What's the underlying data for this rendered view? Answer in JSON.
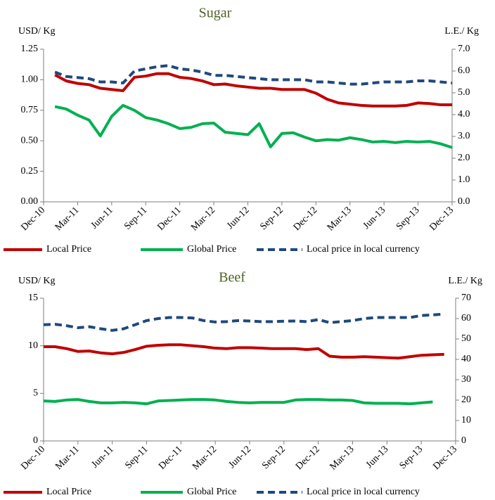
{
  "chart_data": [
    {
      "type": "line",
      "title": "Sugar",
      "y_label": "USD/ Kg",
      "y2_label": "L.E./ Kg",
      "categories": [
        "Dec-10",
        null,
        null,
        "Mar-11",
        null,
        null,
        "Jun-11",
        null,
        null,
        "Sep-11",
        null,
        null,
        "Dec-11",
        null,
        null,
        "Mar-12",
        null,
        null,
        "Jun-12",
        null,
        null,
        "Sep-12",
        null,
        null,
        "Dec-12",
        null,
        null,
        "Mar-13",
        null,
        null,
        "Jun-13",
        null,
        null,
        "Sep-13",
        null,
        null,
        "Dec-13"
      ],
      "ylim": [
        0,
        1.25
      ],
      "yticks": [
        {
          "value": 0,
          "label": "0.00"
        },
        {
          "value": 0.25,
          "label": "0.25"
        },
        {
          "value": 0.5,
          "label": "0.50"
        },
        {
          "value": 0.75,
          "label": "0.75"
        },
        {
          "value": 1,
          "label": "1.00"
        },
        {
          "value": 1.25,
          "label": "1.25"
        }
      ],
      "y2lim": [
        0,
        7
      ],
      "y2ticks": [
        {
          "value": 0,
          "label": "0.0"
        },
        {
          "value": 1,
          "label": "1.0"
        },
        {
          "value": 2,
          "label": "2.0"
        },
        {
          "value": 3,
          "label": "3.0"
        },
        {
          "value": 4,
          "label": "4.0"
        },
        {
          "value": 5,
          "label": "5.0"
        },
        {
          "value": 6,
          "label": "6.0"
        },
        {
          "value": 7,
          "label": "7.0"
        }
      ],
      "series": [
        {
          "name": "Local Price",
          "color": "#c00000",
          "values": [
            null,
            1.04,
            0.99,
            0.97,
            0.96,
            0.93,
            0.92,
            0.91,
            1.02,
            1.03,
            1.05,
            1.05,
            1.02,
            1.01,
            0.99,
            0.96,
            0.965,
            0.95,
            0.94,
            0.93,
            0.93,
            0.92,
            0.92,
            0.92,
            0.89,
            0.84,
            0.81,
            0.8,
            0.79,
            0.785,
            0.785,
            0.785,
            0.79,
            0.81,
            0.805,
            0.795,
            0.795
          ]
        },
        {
          "name": "Global Price",
          "color": "#00b050",
          "values": [
            null,
            0.78,
            0.76,
            0.71,
            0.67,
            0.54,
            0.7,
            0.79,
            0.75,
            0.69,
            0.67,
            0.64,
            0.6,
            0.61,
            0.64,
            0.645,
            0.57,
            0.56,
            0.55,
            0.64,
            0.45,
            0.56,
            0.565,
            0.53,
            0.5,
            0.51,
            0.505,
            0.525,
            0.51,
            0.49,
            0.495,
            0.485,
            0.495,
            0.49,
            0.495,
            0.475,
            0.445
          ]
        },
        {
          "name": "Local price in local currency",
          "color": "#1f497d",
          "dashed": true,
          "axis": "y2",
          "values": [
            null,
            5.95,
            5.75,
            5.7,
            5.65,
            5.5,
            5.5,
            5.45,
            6.0,
            6.1,
            6.2,
            6.25,
            6.1,
            6.05,
            5.95,
            5.8,
            5.8,
            5.75,
            5.7,
            5.65,
            5.6,
            5.6,
            5.6,
            5.6,
            5.5,
            5.5,
            5.45,
            5.4,
            5.4,
            5.45,
            5.5,
            5.5,
            5.5,
            5.55,
            5.55,
            5.5,
            5.45
          ]
        }
      ]
    },
    {
      "type": "line",
      "title": "Beef",
      "y_label": "USD/ Kg",
      "y2_label": "L.E./ Kg",
      "categories": [
        "Dec-10",
        null,
        null,
        "Mar-11",
        null,
        null,
        "Jun-11",
        null,
        null,
        "Sep-11",
        null,
        null,
        "Dec-11",
        null,
        null,
        "Mar-12",
        null,
        null,
        "Jun-12",
        null,
        null,
        "Sep-12",
        null,
        null,
        "Dec-12",
        null,
        null,
        "Mar-13",
        null,
        null,
        "Jun-13",
        null,
        null,
        "Sep-13",
        null,
        null,
        "Dec-13"
      ],
      "ylim": [
        0,
        15
      ],
      "yticks": [
        0,
        5,
        10,
        15
      ],
      "y2lim": [
        0,
        70
      ],
      "y2ticks": [
        0,
        10,
        20,
        30,
        40,
        50,
        60,
        70
      ],
      "series": [
        {
          "name": "Local Price",
          "color": "#c00000",
          "values": [
            9.9,
            9.9,
            9.7,
            9.4,
            9.45,
            9.25,
            9.15,
            9.3,
            9.6,
            9.95,
            10.05,
            10.1,
            10.1,
            10.0,
            9.9,
            9.75,
            9.7,
            9.8,
            9.8,
            9.75,
            9.7,
            9.7,
            9.7,
            9.6,
            9.7,
            8.9,
            8.8,
            8.8,
            8.85,
            8.8,
            8.75,
            8.7,
            8.85,
            9.0,
            9.05,
            9.1,
            null
          ]
        },
        {
          "name": "Global Price",
          "color": "#00b050",
          "values": [
            4.2,
            4.15,
            4.3,
            4.35,
            4.15,
            4.0,
            4.0,
            4.05,
            4.0,
            3.9,
            4.2,
            4.25,
            4.3,
            4.35,
            4.35,
            4.3,
            4.15,
            4.05,
            4.0,
            4.05,
            4.05,
            4.05,
            4.3,
            4.35,
            4.35,
            4.3,
            4.3,
            4.25,
            4.0,
            3.95,
            3.95,
            3.95,
            3.9,
            4.0,
            4.1,
            null,
            null
          ]
        },
        {
          "name": "Local price in local currency",
          "color": "#1f497d",
          "dashed": true,
          "axis": "y2",
          "values": [
            57,
            57.2,
            56.5,
            55.5,
            56,
            55,
            54.2,
            55,
            57,
            59,
            60,
            60.5,
            60.5,
            60.3,
            59,
            58.3,
            58.5,
            59,
            58.8,
            58.5,
            58.5,
            58.7,
            58.8,
            58.5,
            59.5,
            58,
            58.5,
            59,
            60,
            60.5,
            60.5,
            60.5,
            60.5,
            61.5,
            61.8,
            62.2,
            null
          ]
        }
      ]
    }
  ]
}
